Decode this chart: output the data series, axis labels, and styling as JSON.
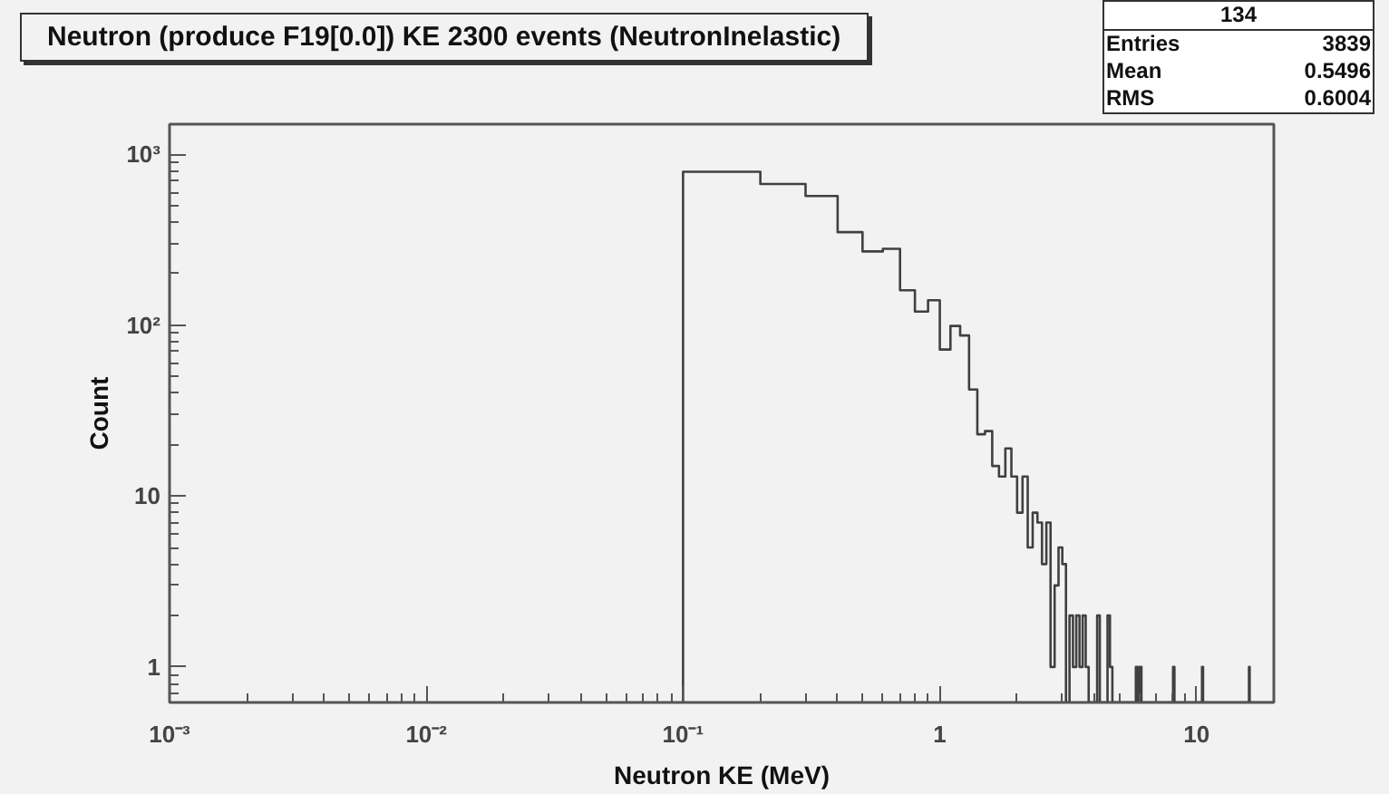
{
  "chart_data": {
    "type": "histogram",
    "title": "Neutron (produce F19[0.0]) KE 2300 events (NeutronInelastic)",
    "xlabel": "Neutron KE (MeV)",
    "ylabel": "Count",
    "annotations": [
      "134",
      "Entries 3839",
      "Mean 0.5496",
      "RMS 0.6004"
    ],
    "log": "xy",
    "grid": false,
    "color": "#404040",
    "xlim": [
      0.001,
      20
    ],
    "ylim": [
      0.62,
      1500
    ],
    "xticks": [
      {
        "value": 0.001,
        "label": "10⁻³"
      },
      {
        "value": 0.01,
        "label": "10⁻²"
      },
      {
        "value": 0.1,
        "label": "10⁻¹"
      },
      1,
      10
    ],
    "yticks": [
      1,
      10,
      {
        "value": 100,
        "label": "10²"
      },
      {
        "value": 1000,
        "label": "10³"
      }
    ],
    "bins": [
      0.1,
      0.2,
      0.3,
      0.4,
      0.5,
      0.6,
      0.7,
      0.8,
      0.9,
      1.0,
      1.1,
      1.2,
      1.3,
      1.4,
      1.5,
      1.6,
      1.7,
      1.8,
      1.9,
      2.0,
      2.1,
      2.2,
      2.3,
      2.4,
      2.5,
      2.6,
      2.7,
      2.8,
      2.9,
      3.0,
      3.1,
      3.2,
      3.3,
      3.4,
      3.5,
      3.6,
      3.7,
      3.8,
      3.9,
      4.0,
      4.1,
      4.2,
      4.3,
      4.4,
      4.5,
      4.6,
      4.7,
      4.8,
      4.9,
      5.0,
      5.1,
      5.2,
      5.3,
      5.4,
      5.5,
      5.6,
      5.7,
      5.8,
      5.9,
      6.0,
      6.1,
      6.2,
      6.3,
      6.4,
      6.5,
      6.6,
      6.7,
      6.8,
      6.9,
      7.0,
      7.1,
      7.2,
      7.3,
      7.4,
      7.5,
      7.6,
      7.7,
      7.8,
      7.9,
      8.0,
      8.1,
      8.2,
      8.3,
      8.4,
      8.5,
      8.6,
      8.7,
      8.8,
      8.9,
      9.0,
      9.1,
      9.2,
      9.3,
      9.4,
      9.5,
      9.6,
      9.7,
      9.8,
      9.9,
      10.0,
      10.1,
      10.2,
      10.3,
      10.4,
      10.5,
      10.6,
      10.7,
      10.8,
      10.9,
      11.0,
      11.1,
      11.2,
      11.3,
      11.4,
      11.5,
      11.6,
      11.7,
      11.8,
      11.9,
      12.0,
      12.1,
      12.2,
      12.3,
      12.4,
      12.5,
      12.6,
      12.7,
      12.8,
      12.9,
      13.0,
      13.1,
      13.2,
      13.3,
      13.4,
      13.5,
      13.6,
      13.7,
      13.8,
      13.9,
      14.0,
      14.1,
      14.2,
      14.3,
      14.4,
      14.5,
      14.6,
      14.7,
      14.8,
      14.9,
      15.0,
      15.1,
      15.2,
      15.3,
      15.4,
      15.5,
      15.6,
      15.7,
      15.8,
      15.9,
      16.0,
      16.1,
      16.2,
      16.3,
      16.4,
      16.5,
      16.6,
      16.7,
      16.8,
      16.9,
      17.0,
      17.1,
      17.2,
      17.3,
      17.4,
      17.5,
      17.6,
      17.7,
      17.8,
      17.9,
      18.0,
      18.1,
      18.2,
      18.3,
      18.4,
      18.5,
      18.6,
      18.7,
      18.8,
      18.9,
      19.0,
      19.1,
      19.2,
      19.3,
      19.4,
      19.5,
      19.6,
      19.7,
      19.8,
      19.9,
      20.0
    ],
    "values": [
      790,
      670,
      570,
      350,
      270,
      280,
      160,
      120,
      140,
      72,
      99,
      87,
      42,
      23,
      24,
      15,
      13,
      19,
      13,
      8,
      13,
      5,
      8,
      7,
      4,
      7,
      1,
      3,
      5,
      4,
      null,
      2,
      1,
      2,
      1,
      2,
      1,
      null,
      null,
      null,
      2,
      null,
      null,
      null,
      2,
      1,
      null,
      null,
      null,
      null,
      null,
      null,
      null,
      null,
      null,
      null,
      null,
      1,
      null,
      1,
      null,
      null,
      null,
      null,
      null,
      null,
      null,
      null,
      null,
      null,
      null,
      null,
      null,
      null,
      null,
      null,
      null,
      null,
      null,
      null,
      1,
      null,
      null,
      null,
      null,
      null,
      null,
      null,
      null,
      null,
      null,
      null,
      null,
      null,
      null,
      null,
      null,
      null,
      null,
      null,
      null,
      null,
      null,
      null,
      1,
      null,
      null,
      null,
      null,
      null,
      null,
      null,
      null,
      null,
      null,
      null,
      null,
      null,
      null,
      null,
      null,
      null,
      null,
      null,
      null,
      null,
      null,
      null,
      null,
      null,
      null,
      null,
      null,
      null,
      null,
      null,
      null,
      null,
      null,
      null,
      null,
      null,
      null,
      null,
      null,
      null,
      null,
      null,
      null,
      null,
      null,
      null,
      null,
      null,
      null,
      null,
      null,
      null,
      null,
      1,
      null,
      null,
      null,
      null,
      null,
      null,
      null,
      null,
      null,
      null,
      null,
      null,
      null,
      null,
      null,
      null,
      null,
      null,
      null,
      null,
      null,
      null,
      null,
      null,
      null,
      null,
      null,
      null,
      null,
      null,
      null,
      null,
      null,
      null,
      null,
      null,
      null,
      null,
      null
    ]
  }
}
